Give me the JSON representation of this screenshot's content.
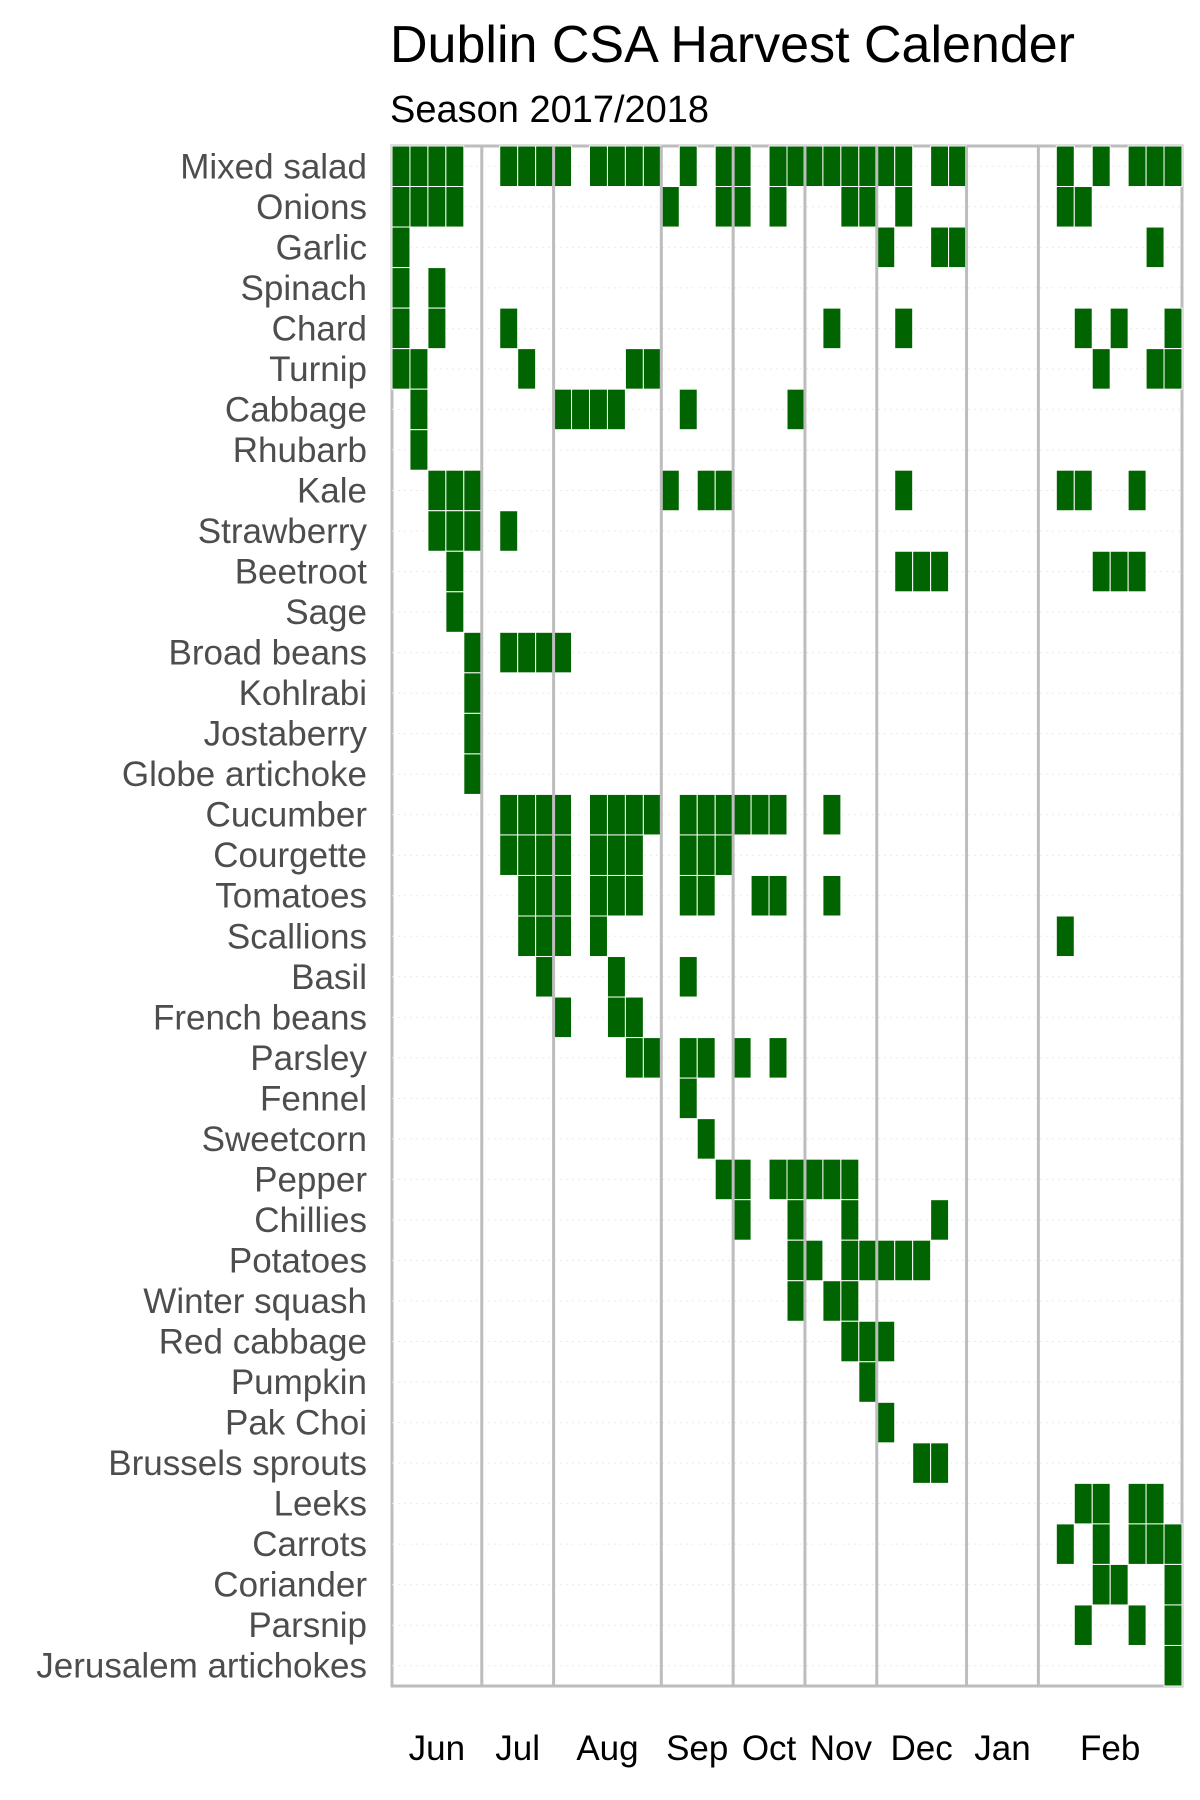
{
  "chart_data": {
    "type": "heatmap",
    "title": "Dublin CSA Harvest Calender",
    "subtitle": "Season 2017/2018",
    "xlabel": "",
    "ylabel": "",
    "x_unit": "week",
    "week_count": 44,
    "months": [
      {
        "label": "Jun",
        "first_week": 1,
        "last_week": 5
      },
      {
        "label": "Jul",
        "first_week": 6,
        "last_week": 9
      },
      {
        "label": "Aug",
        "first_week": 10,
        "last_week": 15
      },
      {
        "label": "Sep",
        "first_week": 16,
        "last_week": 19
      },
      {
        "label": "Oct",
        "first_week": 20,
        "last_week": 23
      },
      {
        "label": "Nov",
        "first_week": 24,
        "last_week": 27
      },
      {
        "label": "Dec",
        "first_week": 28,
        "last_week": 32
      },
      {
        "label": "Jan",
        "first_week": 33,
        "last_week": 36
      },
      {
        "label": "Feb",
        "first_week": 37,
        "last_week": 44
      }
    ],
    "fill_color": "#006400",
    "grid": true,
    "rows": [
      {
        "name": "Mixed salad",
        "weeks": [
          1,
          2,
          3,
          4,
          7,
          8,
          9,
          10,
          12,
          13,
          14,
          15,
          17,
          19,
          20,
          22,
          23,
          24,
          25,
          26,
          27,
          28,
          29,
          31,
          32,
          38,
          40,
          42,
          43,
          44
        ]
      },
      {
        "name": "Onions",
        "weeks": [
          1,
          2,
          3,
          4,
          16,
          19,
          20,
          22,
          26,
          27,
          29,
          38,
          39
        ]
      },
      {
        "name": "Garlic",
        "weeks": [
          1,
          28,
          31,
          32,
          43
        ]
      },
      {
        "name": "Spinach",
        "weeks": [
          1,
          3
        ]
      },
      {
        "name": "Chard",
        "weeks": [
          1,
          3,
          7,
          25,
          29,
          39,
          41,
          44
        ]
      },
      {
        "name": "Turnip",
        "weeks": [
          1,
          2,
          8,
          14,
          15,
          40,
          43,
          44
        ]
      },
      {
        "name": "Cabbage",
        "weeks": [
          2,
          10,
          11,
          12,
          13,
          17,
          23
        ]
      },
      {
        "name": "Rhubarb",
        "weeks": [
          2
        ]
      },
      {
        "name": "Kale",
        "weeks": [
          3,
          4,
          5,
          16,
          18,
          19,
          29,
          38,
          39,
          42
        ]
      },
      {
        "name": "Strawberry",
        "weeks": [
          3,
          4,
          5,
          7
        ]
      },
      {
        "name": "Beetroot",
        "weeks": [
          4,
          29,
          30,
          31,
          40,
          41,
          42
        ]
      },
      {
        "name": "Sage",
        "weeks": [
          4
        ]
      },
      {
        "name": "Broad beans",
        "weeks": [
          5,
          7,
          8,
          9,
          10
        ]
      },
      {
        "name": "Kohlrabi",
        "weeks": [
          5
        ]
      },
      {
        "name": "Jostaberry",
        "weeks": [
          5
        ]
      },
      {
        "name": "Globe artichoke",
        "weeks": [
          5
        ]
      },
      {
        "name": "Cucumber",
        "weeks": [
          7,
          8,
          9,
          10,
          12,
          13,
          14,
          15,
          17,
          18,
          19,
          20,
          21,
          22,
          25
        ]
      },
      {
        "name": "Courgette",
        "weeks": [
          7,
          8,
          9,
          10,
          12,
          13,
          14,
          17,
          18,
          19
        ]
      },
      {
        "name": "Tomatoes",
        "weeks": [
          8,
          9,
          10,
          12,
          13,
          14,
          17,
          18,
          21,
          22,
          25
        ]
      },
      {
        "name": "Scallions",
        "weeks": [
          8,
          9,
          10,
          12,
          38
        ]
      },
      {
        "name": "Basil",
        "weeks": [
          9,
          13,
          17
        ]
      },
      {
        "name": "French beans",
        "weeks": [
          10,
          13,
          14
        ]
      },
      {
        "name": "Parsley",
        "weeks": [
          14,
          15,
          17,
          18,
          20,
          22
        ]
      },
      {
        "name": "Fennel",
        "weeks": [
          17
        ]
      },
      {
        "name": "Sweetcorn",
        "weeks": [
          18
        ]
      },
      {
        "name": "Pepper",
        "weeks": [
          19,
          20,
          22,
          23,
          24,
          25,
          26
        ]
      },
      {
        "name": "Chillies",
        "weeks": [
          20,
          23,
          26,
          31
        ]
      },
      {
        "name": "Potatoes",
        "weeks": [
          23,
          24,
          26,
          27,
          28,
          29,
          30
        ]
      },
      {
        "name": "Winter squash",
        "weeks": [
          23,
          25,
          26
        ]
      },
      {
        "name": "Red cabbage",
        "weeks": [
          26,
          27,
          28
        ]
      },
      {
        "name": "Pumpkin",
        "weeks": [
          27
        ]
      },
      {
        "name": "Pak Choi",
        "weeks": [
          28
        ]
      },
      {
        "name": "Brussels sprouts",
        "weeks": [
          30,
          31
        ]
      },
      {
        "name": "Leeks",
        "weeks": [
          39,
          40,
          42,
          43
        ]
      },
      {
        "name": "Carrots",
        "weeks": [
          38,
          40,
          42,
          43,
          44
        ]
      },
      {
        "name": "Coriander",
        "weeks": [
          40,
          41,
          44
        ]
      },
      {
        "name": "Parsnip",
        "weeks": [
          39,
          42,
          44
        ]
      },
      {
        "name": "Jerusalem artichokes",
        "weeks": [
          44
        ]
      }
    ]
  }
}
